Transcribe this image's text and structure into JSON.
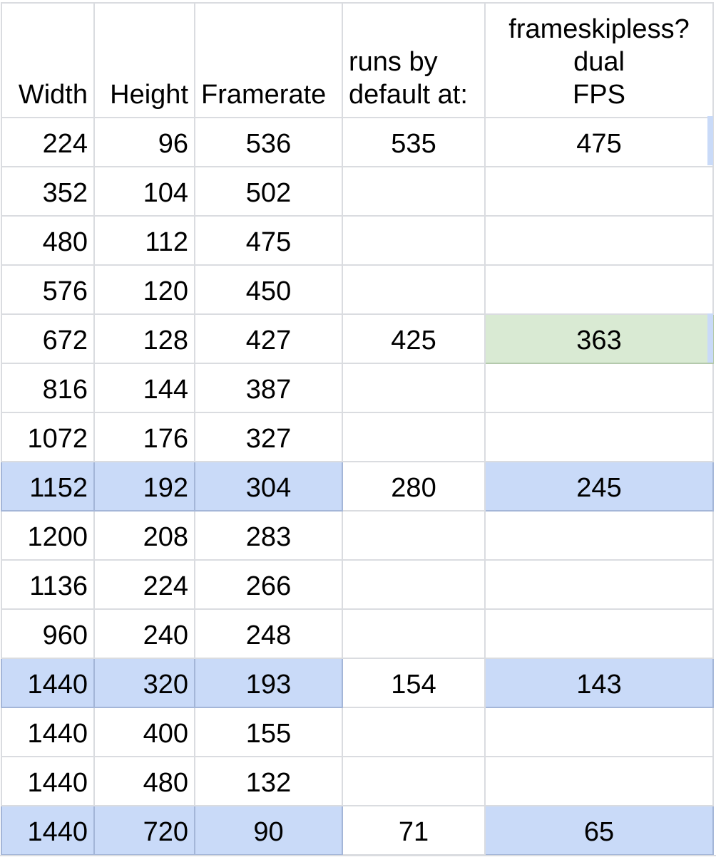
{
  "headers": {
    "width": "Width",
    "height": "Height",
    "framerate": "Framerate",
    "runs_line1": "runs by",
    "runs_line2": "default at:",
    "dual_line1": "frameskipless?",
    "dual_line2": "dual",
    "dual_line3": "FPS"
  },
  "rows": [
    {
      "width": "224",
      "height": "96",
      "framerate": "536",
      "runs": "535",
      "dual": "475",
      "highlight": "none"
    },
    {
      "width": "352",
      "height": "104",
      "framerate": "502",
      "runs": "",
      "dual": "",
      "highlight": "none"
    },
    {
      "width": "480",
      "height": "112",
      "framerate": "475",
      "runs": "",
      "dual": "",
      "highlight": "none"
    },
    {
      "width": "576",
      "height": "120",
      "framerate": "450",
      "runs": "",
      "dual": "",
      "highlight": "none"
    },
    {
      "width": "672",
      "height": "128",
      "framerate": "427",
      "runs": "425",
      "dual": "363",
      "highlight": "green-dual"
    },
    {
      "width": "816",
      "height": "144",
      "framerate": "387",
      "runs": "",
      "dual": "",
      "highlight": "none"
    },
    {
      "width": "1072",
      "height": "176",
      "framerate": "327",
      "runs": "",
      "dual": "",
      "highlight": "none"
    },
    {
      "width": "1152",
      "height": "192",
      "framerate": "304",
      "runs": "280",
      "dual": "245",
      "highlight": "blue"
    },
    {
      "width": "1200",
      "height": "208",
      "framerate": "283",
      "runs": "",
      "dual": "",
      "highlight": "none"
    },
    {
      "width": "1136",
      "height": "224",
      "framerate": "266",
      "runs": "",
      "dual": "",
      "highlight": "none"
    },
    {
      "width": "960",
      "height": "240",
      "framerate": "248",
      "runs": "",
      "dual": "",
      "highlight": "none"
    },
    {
      "width": "1440",
      "height": "320",
      "framerate": "193",
      "runs": "154",
      "dual": "143",
      "highlight": "blue"
    },
    {
      "width": "1440",
      "height": "400",
      "framerate": "155",
      "runs": "",
      "dual": "",
      "highlight": "none"
    },
    {
      "width": "1440",
      "height": "480",
      "framerate": "132",
      "runs": "",
      "dual": "",
      "highlight": "none"
    },
    {
      "width": "1440",
      "height": "720",
      "framerate": "90",
      "runs": "71",
      "dual": "65",
      "highlight": "blue"
    }
  ],
  "colors": {
    "highlight_blue": "#c9daf8",
    "highlight_green": "#d9ead3",
    "gridline": "#dadce0"
  }
}
